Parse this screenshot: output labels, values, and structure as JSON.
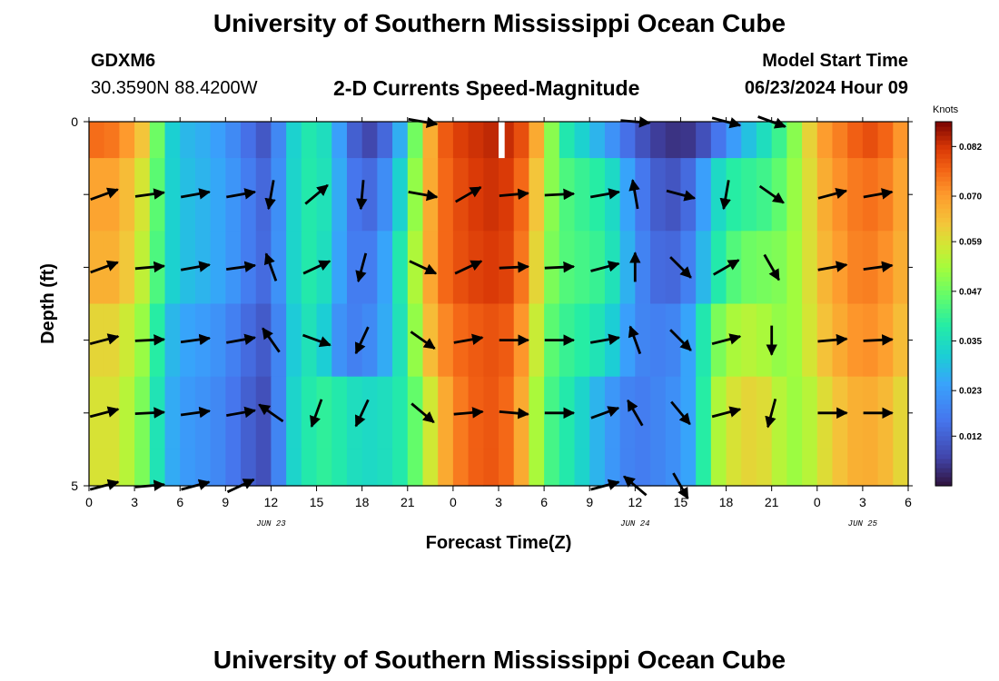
{
  "header": {
    "title": "University of Southern Mississippi Ocean Cube",
    "station_id": "GDXM6",
    "location": "30.3590N  88.4200W",
    "plot_title": "2-D Currents Speed-Magnitude",
    "model_label": "Model Start Time",
    "model_time": "06/23/2024 Hour 09"
  },
  "footer": {
    "title": "University of Southern Mississippi Ocean Cube"
  },
  "chart_data": {
    "type": "heatmap",
    "title": "2-D Currents Speed-Magnitude",
    "xlabel": "Forecast Time(Z)",
    "ylabel": "Depth (ft)",
    "x_start_hour": 0,
    "x_end_hour": 54,
    "x_ticks": [
      {
        "hour": 0,
        "label": "0"
      },
      {
        "hour": 3,
        "label": "3"
      },
      {
        "hour": 6,
        "label": "6"
      },
      {
        "hour": 9,
        "label": "9"
      },
      {
        "hour": 12,
        "label": "12"
      },
      {
        "hour": 15,
        "label": "15"
      },
      {
        "hour": 18,
        "label": "18"
      },
      {
        "hour": 21,
        "label": "21"
      },
      {
        "hour": 24,
        "label": "0"
      },
      {
        "hour": 27,
        "label": "3"
      },
      {
        "hour": 30,
        "label": "6"
      },
      {
        "hour": 33,
        "label": "9"
      },
      {
        "hour": 36,
        "label": "12"
      },
      {
        "hour": 39,
        "label": "15"
      },
      {
        "hour": 42,
        "label": "18"
      },
      {
        "hour": 45,
        "label": "21"
      },
      {
        "hour": 48,
        "label": "0"
      },
      {
        "hour": 51,
        "label": "3"
      },
      {
        "hour": 54,
        "label": "6"
      }
    ],
    "date_labels": [
      {
        "hour": 12,
        "label": "JUN 23"
      },
      {
        "hour": 36,
        "label": "JUN 24"
      },
      {
        "hour": 51,
        "label": "JUN 25"
      }
    ],
    "y_range": [
      0,
      5
    ],
    "y_tick_labels": [
      {
        "depth": 0,
        "label": "0"
      },
      {
        "depth": 5,
        "label": "5"
      }
    ],
    "y_tick_depths": [
      0,
      1,
      2,
      3,
      4,
      5
    ],
    "colorbar": {
      "unit": "Knots",
      "min": 0.0,
      "max": 0.088,
      "ticks": [
        "0.012",
        "0.023",
        "0.035",
        "0.047",
        "0.059",
        "0.070",
        "0.082"
      ]
    },
    "speed_profile_hours": [
      0,
      1,
      2,
      3,
      4,
      5,
      6,
      7,
      8,
      9,
      10,
      11,
      12,
      13,
      14,
      15,
      16,
      17,
      18,
      19,
      20,
      21,
      22,
      23,
      24,
      25,
      26,
      27,
      28,
      29,
      30,
      31,
      32,
      33,
      34,
      35,
      36,
      37,
      38,
      39,
      40,
      41,
      42,
      43,
      44,
      45,
      46,
      47,
      48,
      49,
      50,
      51,
      52,
      53,
      54
    ],
    "speed_profile": [
      [
        0.075,
        0.076,
        0.073,
        0.068,
        0.059,
        0.035,
        0.029,
        0.027,
        0.026,
        0.022,
        0.018,
        0.012,
        0.009,
        0.03,
        0.035,
        0.04,
        0.03,
        0.018,
        0.006,
        0.009,
        0.018,
        0.035,
        0.06,
        0.075,
        0.08,
        0.082,
        0.083,
        0.084,
        0.082,
        0.076,
        0.06,
        0.04,
        0.035,
        0.03,
        0.025,
        0.018,
        0.012,
        0.007,
        0.005,
        0.004,
        0.006,
        0.012,
        0.02,
        0.027,
        0.032,
        0.038,
        0.045,
        0.055,
        0.068,
        0.072,
        0.075,
        0.079,
        0.079,
        0.074,
        0.068
      ],
      [
        0.068,
        0.07,
        0.068,
        0.062,
        0.055,
        0.035,
        0.03,
        0.028,
        0.027,
        0.024,
        0.02,
        0.015,
        0.012,
        0.03,
        0.036,
        0.04,
        0.032,
        0.02,
        0.012,
        0.016,
        0.025,
        0.04,
        0.062,
        0.074,
        0.078,
        0.081,
        0.082,
        0.083,
        0.08,
        0.072,
        0.055,
        0.045,
        0.042,
        0.04,
        0.038,
        0.03,
        0.02,
        0.013,
        0.01,
        0.01,
        0.018,
        0.03,
        0.038,
        0.04,
        0.041,
        0.043,
        0.048,
        0.055,
        0.065,
        0.07,
        0.073,
        0.075,
        0.075,
        0.072,
        0.066
      ],
      [
        0.066,
        0.068,
        0.066,
        0.06,
        0.052,
        0.035,
        0.03,
        0.028,
        0.027,
        0.024,
        0.02,
        0.015,
        0.013,
        0.03,
        0.036,
        0.04,
        0.03,
        0.02,
        0.015,
        0.02,
        0.03,
        0.045,
        0.063,
        0.074,
        0.078,
        0.08,
        0.081,
        0.082,
        0.079,
        0.07,
        0.052,
        0.045,
        0.043,
        0.042,
        0.04,
        0.032,
        0.022,
        0.015,
        0.013,
        0.014,
        0.022,
        0.034,
        0.042,
        0.046,
        0.048,
        0.048,
        0.05,
        0.055,
        0.064,
        0.068,
        0.072,
        0.074,
        0.073,
        0.07,
        0.065
      ],
      [
        0.06,
        0.062,
        0.06,
        0.055,
        0.048,
        0.03,
        0.026,
        0.024,
        0.023,
        0.02,
        0.016,
        0.012,
        0.01,
        0.028,
        0.034,
        0.038,
        0.025,
        0.018,
        0.018,
        0.022,
        0.03,
        0.042,
        0.06,
        0.07,
        0.075,
        0.077,
        0.078,
        0.079,
        0.076,
        0.066,
        0.048,
        0.042,
        0.04,
        0.038,
        0.035,
        0.028,
        0.02,
        0.018,
        0.018,
        0.02,
        0.03,
        0.045,
        0.052,
        0.055,
        0.055,
        0.052,
        0.05,
        0.055,
        0.062,
        0.066,
        0.07,
        0.072,
        0.071,
        0.068,
        0.062
      ],
      [
        0.058,
        0.06,
        0.058,
        0.052,
        0.045,
        0.028,
        0.024,
        0.022,
        0.021,
        0.018,
        0.014,
        0.01,
        0.008,
        0.03,
        0.036,
        0.04,
        0.04,
        0.036,
        0.034,
        0.034,
        0.036,
        0.04,
        0.052,
        0.064,
        0.072,
        0.076,
        0.078,
        0.078,
        0.074,
        0.062,
        0.045,
        0.04,
        0.036,
        0.03,
        0.025,
        0.02,
        0.017,
        0.018,
        0.02,
        0.022,
        0.028,
        0.05,
        0.058,
        0.06,
        0.062,
        0.058,
        0.052,
        0.052,
        0.058,
        0.062,
        0.066,
        0.068,
        0.067,
        0.064,
        0.058
      ]
    ],
    "blank_cell": {
      "hour_start": 27,
      "hour_end": 27.4,
      "depth_start": 0,
      "depth_end": 0.5
    },
    "vector_rows_depth": [
      0,
      1,
      2,
      3,
      4,
      5
    ],
    "vector_columns_hours": [
      1,
      4,
      7,
      10,
      12,
      15,
      18,
      22,
      25,
      28,
      31,
      34,
      36,
      39,
      42,
      45,
      49,
      52
    ],
    "vector_angle_deg_from_east": [
      [
        null,
        null,
        null,
        null,
        null,
        null,
        null,
        -10,
        null,
        null,
        null,
        null,
        -5,
        null,
        -15,
        -20,
        null,
        null
      ],
      [
        20,
        8,
        10,
        10,
        -100,
        40,
        -95,
        -10,
        30,
        5,
        3,
        10,
        100,
        -15,
        -100,
        -35,
        15,
        10
      ],
      [
        20,
        5,
        10,
        8,
        110,
        25,
        -105,
        -25,
        25,
        3,
        3,
        15,
        90,
        -45,
        30,
        -60,
        10,
        8
      ],
      [
        15,
        3,
        8,
        10,
        125,
        -20,
        -115,
        -35,
        10,
        0,
        0,
        10,
        110,
        -45,
        15,
        -90,
        5,
        3
      ],
      [
        15,
        3,
        8,
        10,
        145,
        -110,
        -115,
        -40,
        5,
        -5,
        0,
        20,
        120,
        -50,
        15,
        -105,
        0,
        0
      ],
      [
        15,
        5,
        15,
        25,
        null,
        null,
        null,
        null,
        null,
        null,
        null,
        15,
        140,
        -60,
        null,
        null,
        null,
        null
      ]
    ]
  }
}
